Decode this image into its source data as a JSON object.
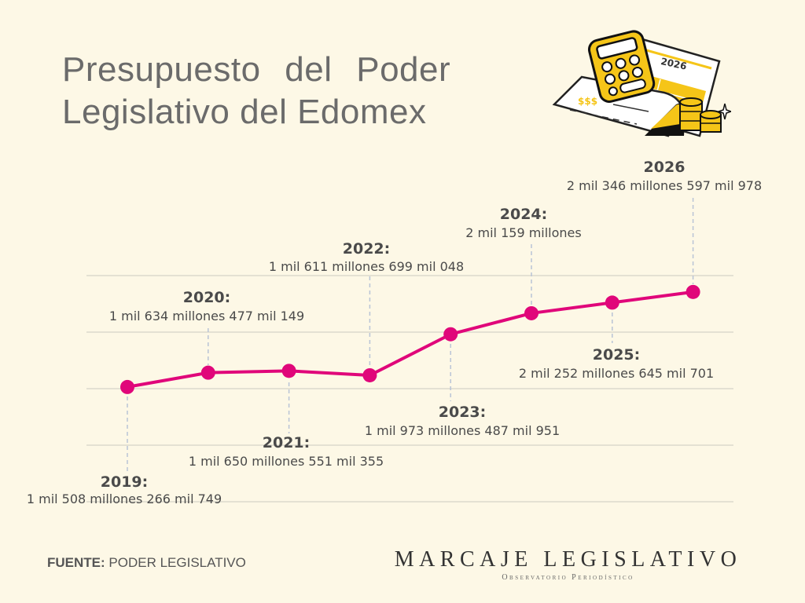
{
  "title": {
    "line1": "Presupuesto del Poder",
    "line2": "Legislativo del Edomex"
  },
  "illustration": {
    "name": "calculator-budget-illustration",
    "year_label": "2026"
  },
  "footer": {
    "source_label": "FUENTE:",
    "source_value": "PODER LEGISLATIVO",
    "brand_name": "MARCAJE LEGISLATIVO",
    "brand_tagline": "Observatorio Periodístico"
  },
  "colors": {
    "background": "#fdf8e6",
    "line": "#e0067a",
    "text": "#4a4a4a",
    "title": "#6b6b6b",
    "grid": "#d6d3c8",
    "leader": "#b9c4d6"
  },
  "chart_data": {
    "type": "line",
    "title": "Presupuesto del Poder Legislativo del Edomex",
    "xlabel": "",
    "ylabel": "",
    "units": "millones de pesos",
    "grid": true,
    "legend": "none",
    "x": [
      "2019",
      "2020",
      "2021",
      "2022",
      "2023",
      "2024",
      "2025",
      "2026"
    ],
    "values": [
      1508.27,
      1634.48,
      1650.55,
      1611.7,
      1973.49,
      2159.0,
      2252.65,
      2346.6
    ],
    "labels": [
      {
        "year": "2019:",
        "text": "1 mil 508 millones 266 mil 749",
        "position": "below"
      },
      {
        "year": "2020:",
        "text": "1 mil 634 millones 477 mil 149",
        "position": "above"
      },
      {
        "year": "2021:",
        "text": "1 mil 650 millones 551 mil 355",
        "position": "below"
      },
      {
        "year": "2022:",
        "text": "1 mil 611 millones 699 mil 048",
        "position": "above"
      },
      {
        "year": "2023:",
        "text": "1 mil 973 millones 487 mil 951",
        "position": "below"
      },
      {
        "year": "2024:",
        "text": "2 mil 159 millones",
        "position": "above"
      },
      {
        "year": "2025:",
        "text": "2 mil 252 millones 645 mil 701",
        "position": "below"
      },
      {
        "year": "2026",
        "text": "2 mil 346 millones 597 mil 978",
        "position": "above"
      }
    ]
  }
}
